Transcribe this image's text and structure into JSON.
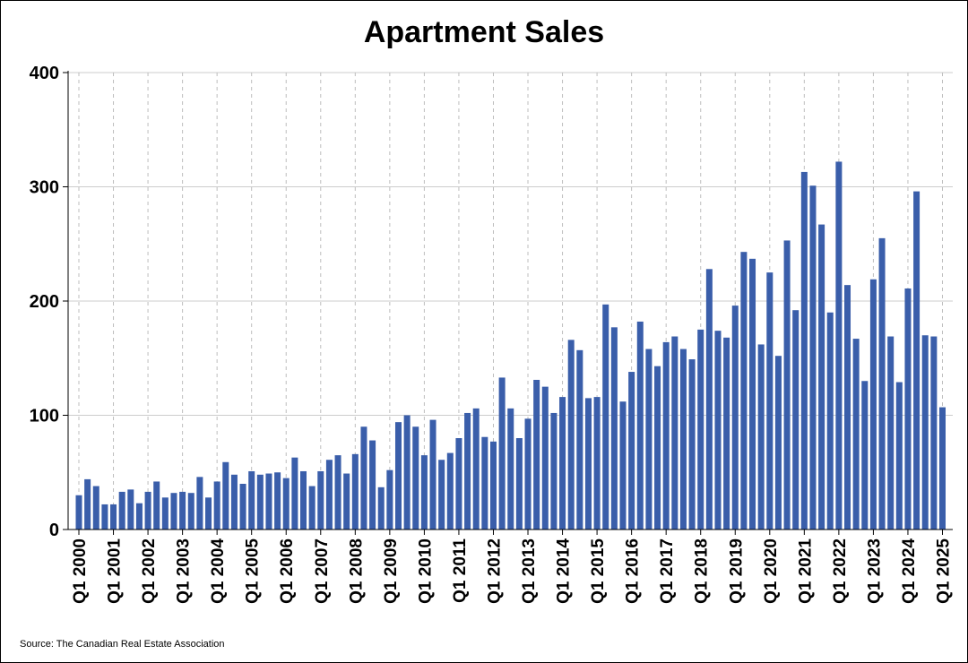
{
  "chart_data": {
    "type": "bar",
    "title": "Apartment Sales",
    "xlabel": "",
    "ylabel": "",
    "ylim": [
      0,
      400
    ],
    "yticks": [
      0,
      100,
      200,
      300,
      400
    ],
    "grid": {
      "horizontal": true,
      "vertical_dashed": true
    },
    "bar_color": "#3a5eaa",
    "source": "Source: The Canadian Real Estate Association",
    "tick_labels": [
      "Q1 2000",
      "Q1 2001",
      "Q1 2002",
      "Q1 2003",
      "Q1 2004",
      "Q1 2005",
      "Q1 2006",
      "Q1 2007",
      "Q1 2008",
      "Q1 2009",
      "Q1 2010",
      "Q1 2011",
      "Q1 2012",
      "Q1 2013",
      "Q1 2014",
      "Q1 2015",
      "Q1 2016",
      "Q1 2017",
      "Q1 2018",
      "Q1 2019",
      "Q1 2020",
      "Q1 2021",
      "Q1 2022",
      "Q1 2023",
      "Q1 2024",
      "Q1 2025"
    ],
    "categories": [
      "Q1 2000",
      "Q2 2000",
      "Q3 2000",
      "Q4 2000",
      "Q1 2001",
      "Q2 2001",
      "Q3 2001",
      "Q4 2001",
      "Q1 2002",
      "Q2 2002",
      "Q3 2002",
      "Q4 2002",
      "Q1 2003",
      "Q2 2003",
      "Q3 2003",
      "Q4 2003",
      "Q1 2004",
      "Q2 2004",
      "Q3 2004",
      "Q4 2004",
      "Q1 2005",
      "Q2 2005",
      "Q3 2005",
      "Q4 2005",
      "Q1 2006",
      "Q2 2006",
      "Q3 2006",
      "Q4 2006",
      "Q1 2007",
      "Q2 2007",
      "Q3 2007",
      "Q4 2007",
      "Q1 2008",
      "Q2 2008",
      "Q3 2008",
      "Q4 2008",
      "Q1 2009",
      "Q2 2009",
      "Q3 2009",
      "Q4 2009",
      "Q1 2010",
      "Q2 2010",
      "Q3 2010",
      "Q4 2010",
      "Q1 2011",
      "Q2 2011",
      "Q3 2011",
      "Q4 2011",
      "Q1 2012",
      "Q2 2012",
      "Q3 2012",
      "Q4 2012",
      "Q1 2013",
      "Q2 2013",
      "Q3 2013",
      "Q4 2013",
      "Q1 2014",
      "Q2 2014",
      "Q3 2014",
      "Q4 2014",
      "Q1 2015",
      "Q2 2015",
      "Q3 2015",
      "Q4 2015",
      "Q1 2016",
      "Q2 2016",
      "Q3 2016",
      "Q4 2016",
      "Q1 2017",
      "Q2 2017",
      "Q3 2017",
      "Q4 2017",
      "Q1 2018",
      "Q2 2018",
      "Q3 2018",
      "Q4 2018",
      "Q1 2019",
      "Q2 2019",
      "Q3 2019",
      "Q4 2019",
      "Q1 2020",
      "Q2 2020",
      "Q3 2020",
      "Q4 2020",
      "Q1 2021",
      "Q2 2021",
      "Q3 2021",
      "Q4 2021",
      "Q1 2022",
      "Q2 2022",
      "Q3 2022",
      "Q4 2022",
      "Q1 2023",
      "Q2 2023",
      "Q3 2023",
      "Q4 2023",
      "Q1 2024",
      "Q2 2024",
      "Q3 2024",
      "Q4 2024",
      "Q1 2025"
    ],
    "values": [
      30,
      44,
      38,
      22,
      22,
      33,
      35,
      23,
      33,
      42,
      28,
      32,
      33,
      32,
      46,
      28,
      42,
      59,
      48,
      40,
      51,
      48,
      49,
      50,
      45,
      63,
      51,
      38,
      51,
      61,
      65,
      49,
      66,
      90,
      78,
      37,
      52,
      94,
      100,
      90,
      65,
      96,
      61,
      67,
      80,
      102,
      106,
      81,
      77,
      133,
      106,
      80,
      97,
      131,
      125,
      102,
      116,
      166,
      157,
      115,
      116,
      197,
      177,
      112,
      138,
      182,
      158,
      143,
      164,
      169,
      158,
      149,
      175,
      228,
      174,
      168,
      196,
      243,
      237,
      162,
      225,
      152,
      253,
      192,
      313,
      301,
      267,
      190,
      322,
      214,
      167,
      130,
      219,
      255,
      169,
      129,
      211,
      296,
      170,
      169,
      107
    ]
  }
}
